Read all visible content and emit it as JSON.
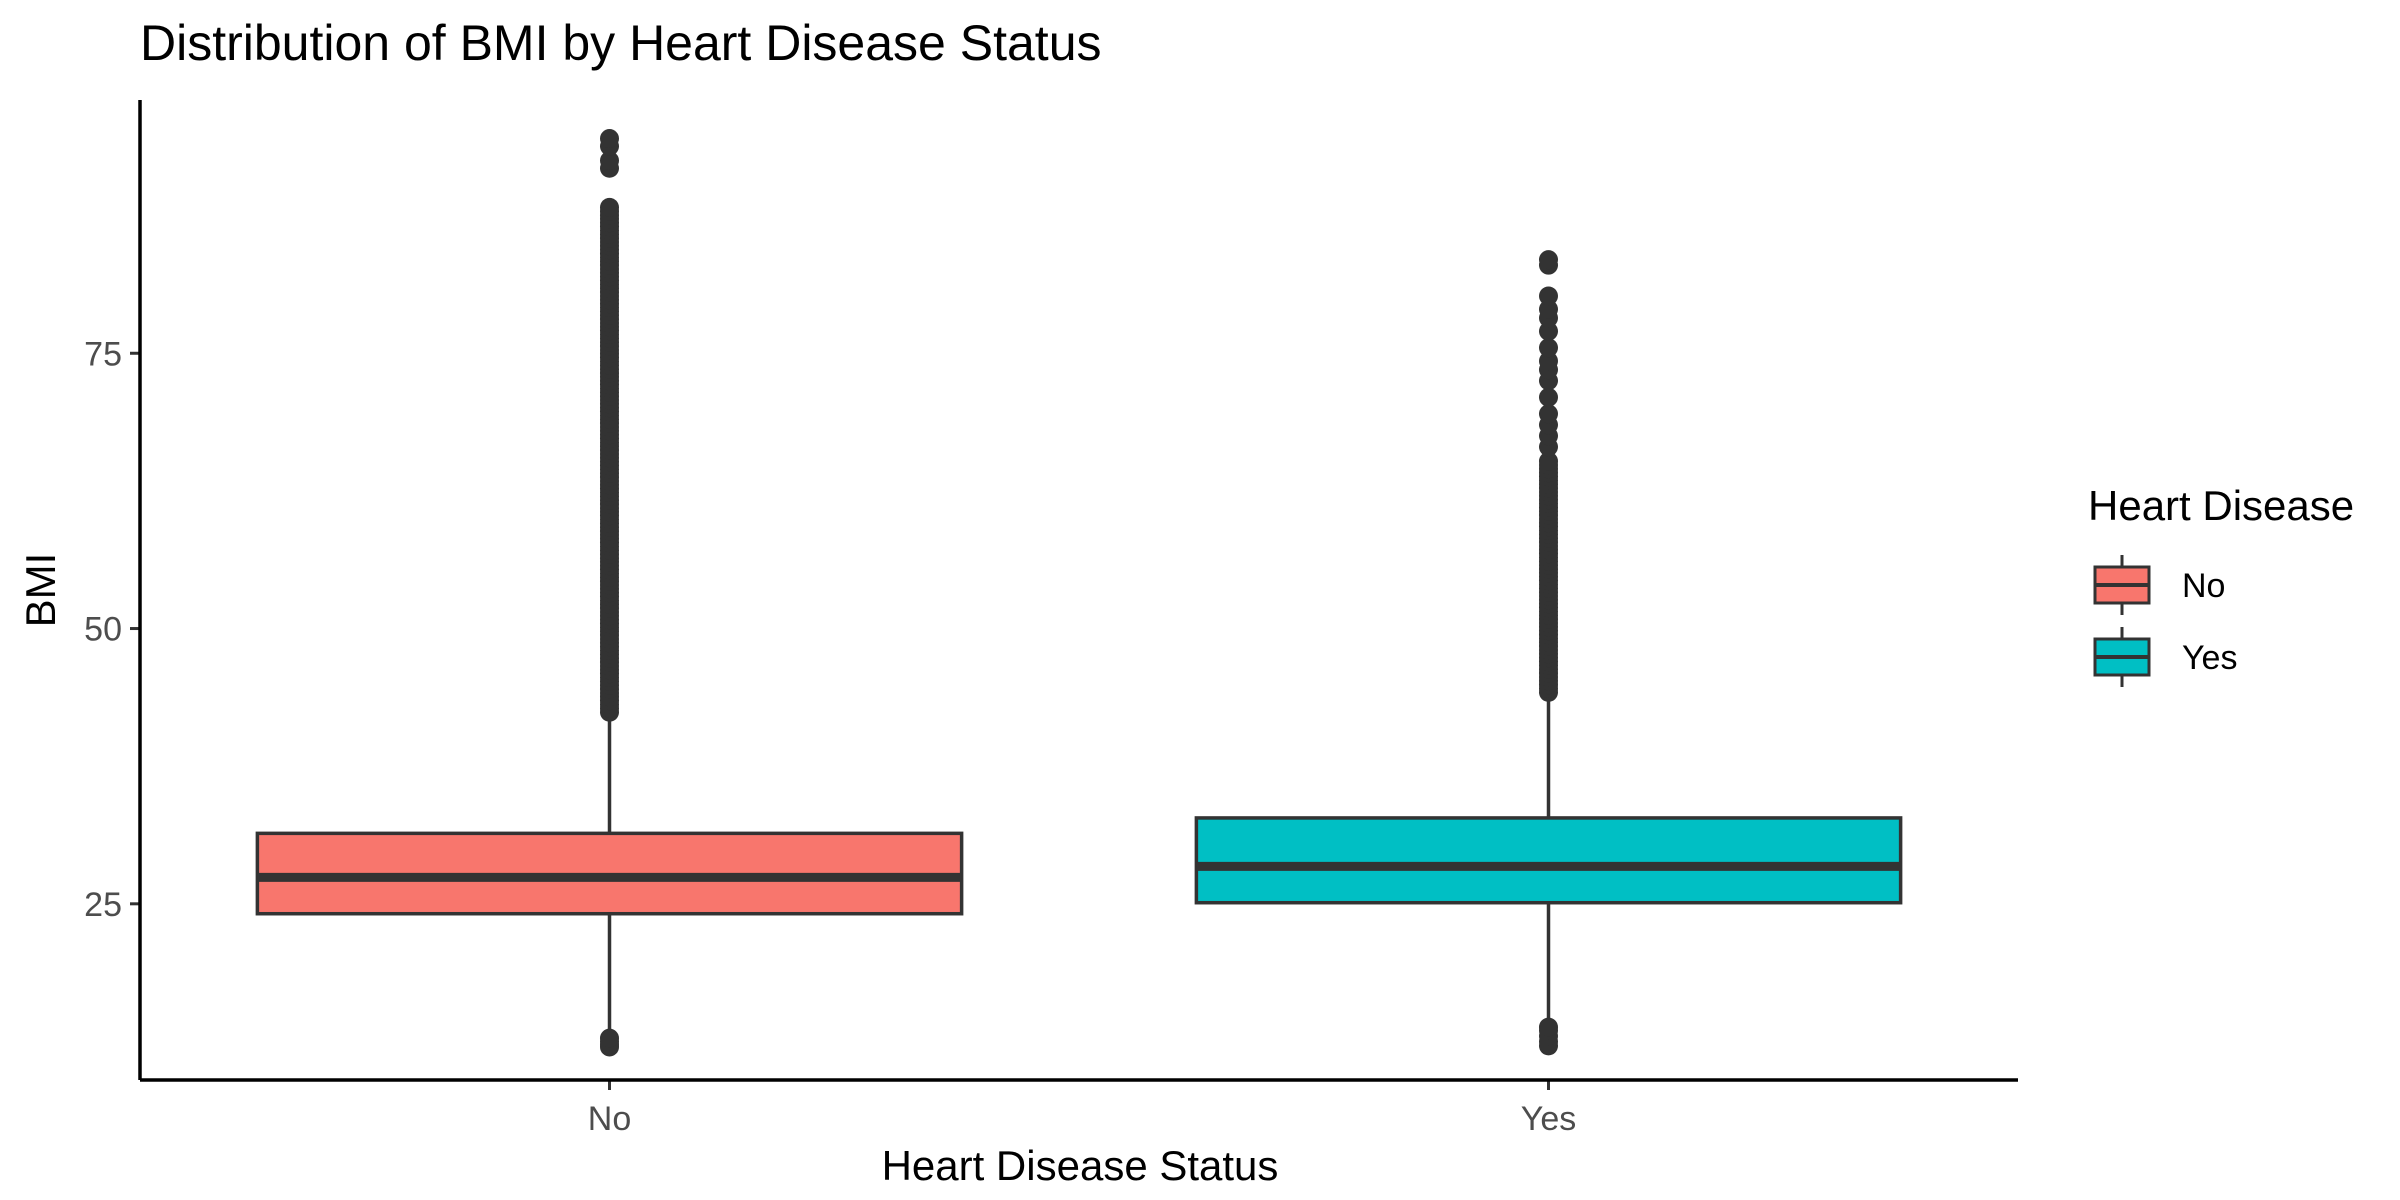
{
  "chart_data": {
    "type": "boxplot",
    "title": "Distribution of BMI by Heart Disease Status",
    "xlabel": "Heart Disease Status",
    "ylabel": "BMI",
    "categories": [
      "No",
      "Yes"
    ],
    "ylim": [
      9,
      98
    ],
    "yticks": [
      25,
      50,
      75
    ],
    "grid": false,
    "legend": {
      "title": "Heart Disease",
      "position": "right",
      "entries": [
        {
          "label": "No",
          "color": "#F8766D"
        },
        {
          "label": "Yes",
          "color": "#00BFC4"
        }
      ]
    },
    "series": [
      {
        "category": "No",
        "color": "#F8766D",
        "q1": 24.1,
        "median": 27.4,
        "q3": 31.4,
        "whisker_low": 12.8,
        "whisker_high": 42.4,
        "outliers_low": [
          12.0,
          12.2,
          12.5,
          12.8
        ],
        "outliers_high_range": [
          42.4,
          88.5
        ],
        "outliers_high_extra": [
          91.8,
          92.5,
          93.8,
          94.5
        ]
      },
      {
        "category": "Yes",
        "color": "#00BFC4",
        "q1": 25.1,
        "median": 28.4,
        "q3": 32.8,
        "whisker_low": 13.8,
        "whisker_high": 44.2,
        "outliers_low": [
          12.1,
          12.5,
          13.0,
          13.5,
          13.8
        ],
        "outliers_high_range": [
          44.2,
          65.5
        ],
        "outliers_high_extra": [
          66.5,
          67.5,
          68.5,
          69.5,
          71.0,
          72.5,
          73.5,
          74.3,
          75.5,
          77.0,
          78.2,
          79.0,
          80.2,
          83.0,
          83.5
        ]
      }
    ]
  }
}
